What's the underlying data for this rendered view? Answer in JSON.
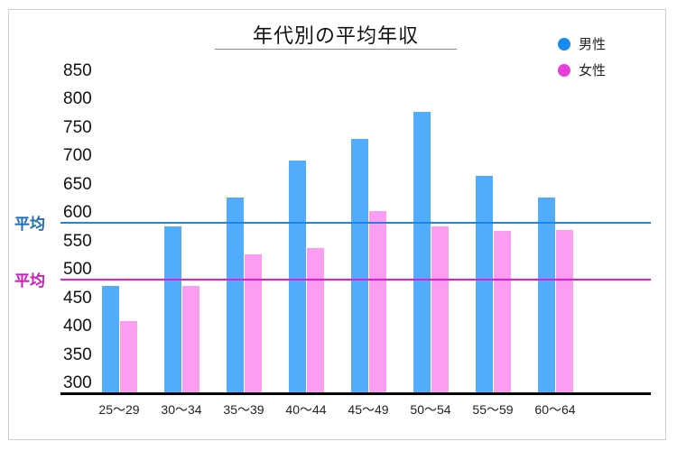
{
  "chart_data": {
    "type": "bar",
    "title": "年代別の平均年収",
    "xlabel": "",
    "ylabel": "",
    "ylim": [
      300,
      850
    ],
    "yticks": [
      850,
      800,
      750,
      700,
      650,
      600,
      550,
      500,
      450,
      400,
      350,
      300
    ],
    "categories": [
      "25〜29",
      "30〜34",
      "35〜39",
      "40〜44",
      "45〜49",
      "50〜54",
      "55〜59",
      "60〜64"
    ],
    "series": [
      {
        "name": "男性",
        "color": "#52acfc",
        "values": [
          489,
          594,
          645,
          709,
          747,
          796,
          682,
          645
        ]
      },
      {
        "name": "女性",
        "color": "#fb9df1",
        "values": [
          427,
          489,
          544,
          556,
          620,
          594,
          585,
          588
        ]
      }
    ],
    "reference_lines": [
      {
        "label": "平均",
        "value": 600,
        "color": "#1a86ea",
        "label_color": "#1f6db3"
      },
      {
        "label": "平均",
        "value": 500,
        "color": "#ee16d8",
        "label_color": "#cc1cb8"
      }
    ],
    "legend_position": "top-right",
    "grid": false
  },
  "legend": [
    {
      "label": "男性",
      "color": "#1789f5"
    },
    {
      "label": "女性",
      "color": "#e63fd9"
    }
  ]
}
